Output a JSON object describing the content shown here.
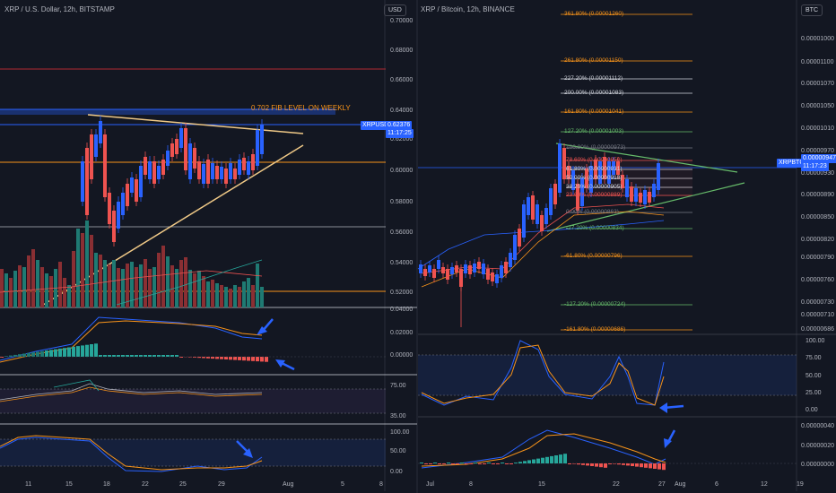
{
  "left": {
    "title": "XRP / U.S. Dollar, 12h, BITSTAMP",
    "currency": "USD",
    "price_axis": [
      "0.70000",
      "0.68000",
      "0.66000",
      "0.64000",
      "0.62000",
      "0.60000",
      "0.58000",
      "0.56000",
      "0.54000",
      "0.52000"
    ],
    "annotation": "0.702 FIB LEVEL ON WEEKLY",
    "symbol_tag": "XRPUSD",
    "price_tag": "0.62376",
    "time_tag": "11:17:25",
    "macd_axis": [
      "0.04000",
      "0.02000",
      "0.00000"
    ],
    "rsi_axis": [
      "75.00",
      "35.00"
    ],
    "stoch_axis": [
      "100.00",
      "50.00",
      "0.00"
    ],
    "date_axis": [
      "11",
      "15",
      "18",
      "22",
      "25",
      "29",
      "Aug",
      "5",
      "8"
    ]
  },
  "right": {
    "title": "XRP / Bitcoin, 12h, BINANCE",
    "currency": "BTC",
    "price_axis": [
      "0.00001000",
      "0.00001100",
      "0.00001070",
      "0.00001050",
      "0.00001010",
      "0.00000970",
      "0.00000930",
      "0.00000890",
      "0.00000850",
      "0.00000820",
      "0.00000790",
      "0.00000760",
      "0.00000730",
      "0.00000710",
      "0.00000686"
    ],
    "symbol_tag": "XRPBTC",
    "price_tag": "0.00000947",
    "time_tag": "11:17:23",
    "fib_levels": [
      {
        "label": "361.80% (0.00001260)",
        "color": "#f7931a"
      },
      {
        "label": "261.80% (0.00001150)",
        "color": "#f7931a"
      },
      {
        "label": "227.20% (0.00001112)",
        "color": "#d1d4dc"
      },
      {
        "label": "200.00% (0.00001083)",
        "color": "#d1d4dc"
      },
      {
        "label": "161.80% (0.00001041)",
        "color": "#f7931a"
      },
      {
        "label": "127.20% (0.00001003)",
        "color": "#66bb6a"
      },
      {
        "label": "100.00% (0.00000973)",
        "color": "#787b86"
      },
      {
        "label": "78.60% (0.00000950)",
        "color": "#ef5350"
      },
      {
        "label": "61.80% (0.00000931)",
        "color": "#d1d4dc"
      },
      {
        "label": "50.00% (0.00000918)",
        "color": "#d1d4dc"
      },
      {
        "label": "38.20% (0.00000905)",
        "color": "#d1d4dc"
      },
      {
        "label": "23.60% (0.00000889)",
        "color": "#ef5350"
      },
      {
        "label": "0.00% (0.00000863)",
        "color": "#787b86"
      },
      {
        "label": "-27.20% (0.00000834)",
        "color": "#66bb6a"
      },
      {
        "label": "-61.80% (0.00000796)",
        "color": "#f7931a"
      },
      {
        "label": "-127.20% (0.00000724)",
        "color": "#66bb6a"
      },
      {
        "label": "-161.80% (0.00000686)",
        "color": "#f7931a"
      }
    ],
    "stoch_axis": [
      "100.00",
      "75.00",
      "50.00",
      "25.00",
      "0.00"
    ],
    "macd_axis": [
      "0.00000040",
      "0.00000020",
      "0.00000000"
    ],
    "date_axis": [
      "Jul",
      "8",
      "15",
      "22",
      "27",
      "Aug",
      "6",
      "12",
      "19"
    ]
  },
  "colors": {
    "bg": "#131722",
    "up": "#2962ff",
    "down": "#ef5350",
    "orange": "#f7931a",
    "yellow": "#f0c987",
    "teal": "#26a69a",
    "arrow": "#2962ff"
  }
}
